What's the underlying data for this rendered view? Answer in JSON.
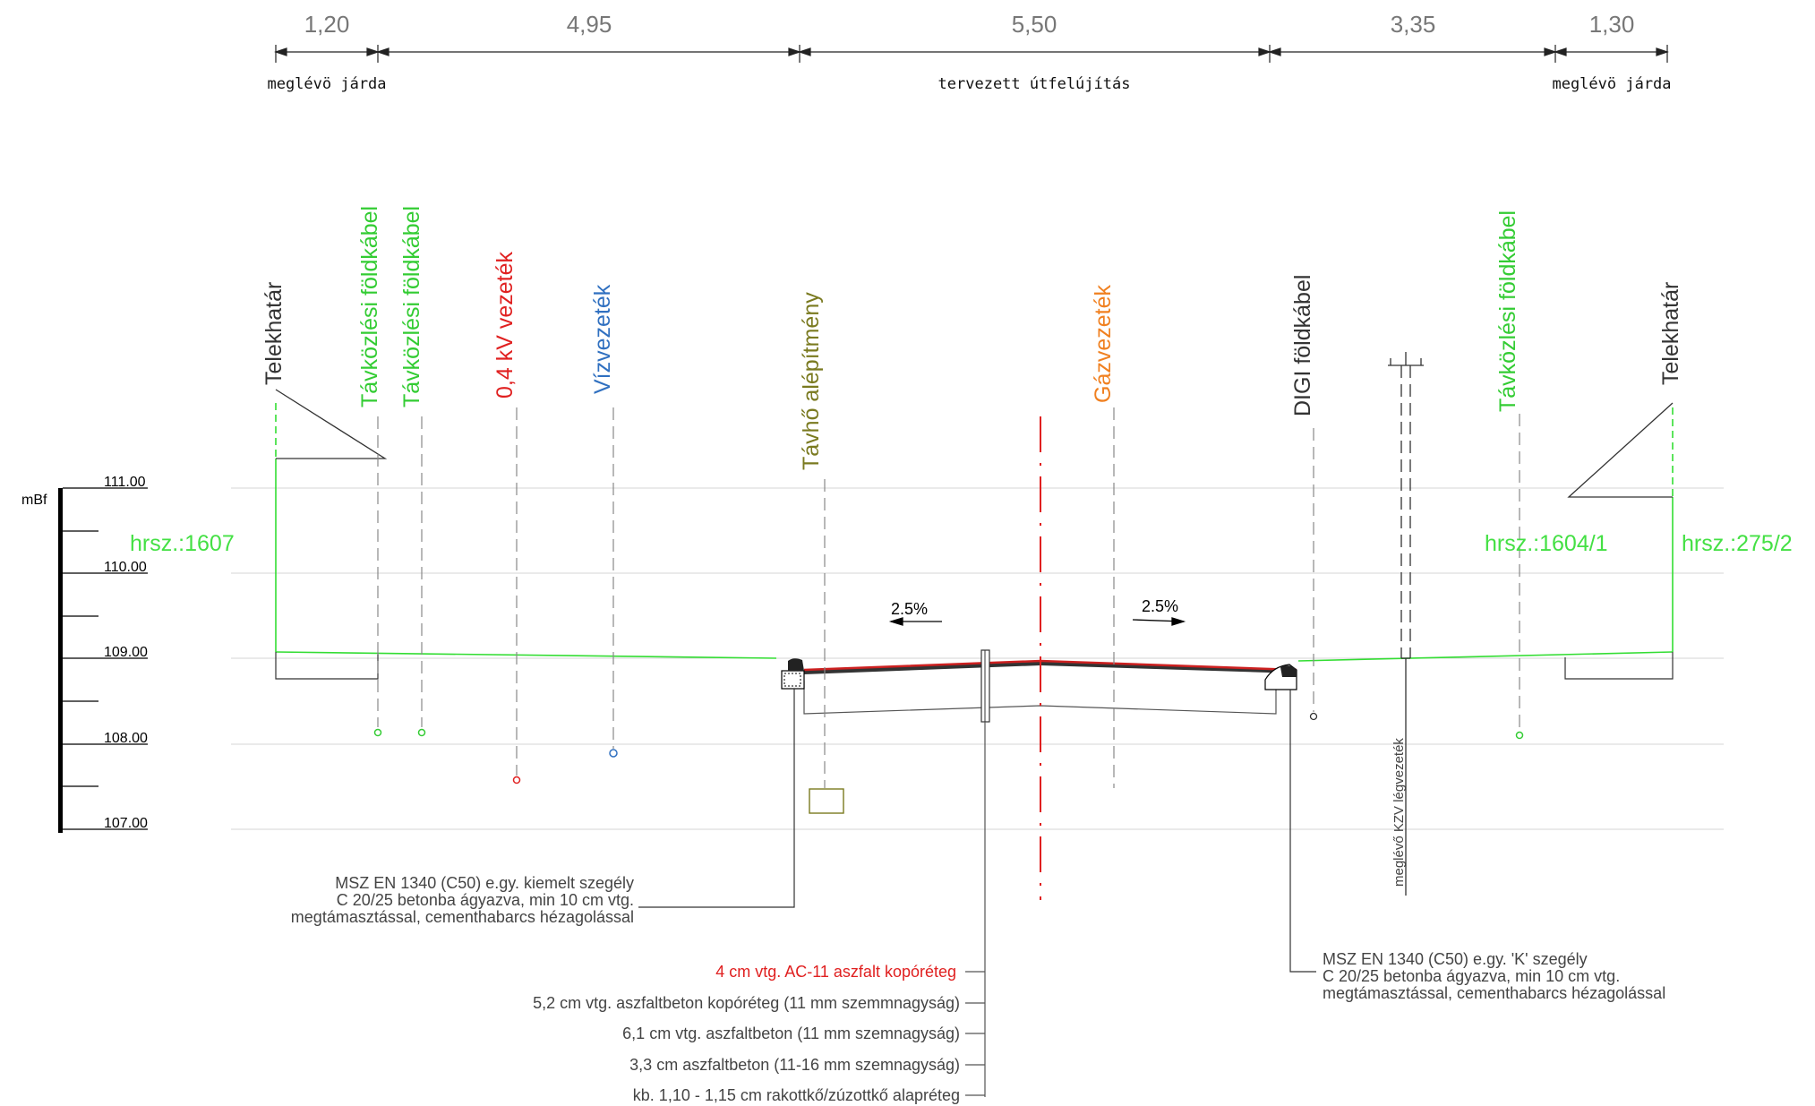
{
  "dimensions": {
    "values": [
      "1,20",
      "4,95",
      "5,50",
      "3,35",
      "1,30"
    ],
    "labels": {
      "left": "meglévö járda",
      "center": "tervezett útfelújítás",
      "right": "meglévö járda"
    }
  },
  "utilities": [
    {
      "label": "Telekhatár",
      "color": "#333333"
    },
    {
      "label": "Távközlési földkábel",
      "color": "#33cc33"
    },
    {
      "label": "Távközlési földkábel",
      "color": "#33cc33"
    },
    {
      "label": "0,4 kV vezeték",
      "color": "#e02020"
    },
    {
      "label": "Vízvezeték",
      "color": "#3070c0"
    },
    {
      "label": "Távhő alépítmény",
      "color": "#7a7a20"
    },
    {
      "label": "Gázvezeték",
      "color": "#f08020"
    },
    {
      "label": "DIGI földkábel",
      "color": "#333333"
    },
    {
      "label": "Távközlési földkábel",
      "color": "#33cc33"
    },
    {
      "label": "Telekhatár",
      "color": "#333333"
    }
  ],
  "scale": {
    "unit": "mBf",
    "ticks": [
      "111.00",
      "110.00",
      "109.00",
      "108.00",
      "107.00"
    ]
  },
  "parcels": {
    "left": "hrsz.:1607",
    "right_inner": "hrsz.:1604/1",
    "right_outer": "hrsz.:275/2"
  },
  "slopes": {
    "left": "2.5%",
    "right": "2.5%"
  },
  "notes": {
    "left_kerb": [
      "MSZ EN 1340 (C50) e.gy. kiemelt szegély",
      "C 20/25 betonba ágyazva, min 10 cm vtg.",
      "megtámasztással, cementhabarcs hézagolással"
    ],
    "right_kerb": [
      "MSZ EN 1340 (C50) e.gy. 'K' szegély",
      "C 20/25 betonba ágyazva, min 10 cm vtg.",
      "megtámasztással, cementhabarcs hézagolással"
    ],
    "overhead": "meglévő KZV légvezeték",
    "layers": [
      "4 cm vtg. AC-11 aszfalt kopóréteg",
      "5,2 cm vtg. aszfaltbeton kopóréteg (11 mm szemmnagyság)",
      "6,1 cm vtg.  aszfaltbeton (11 mm szemnagyság)",
      "3,3 cm aszfaltbeton (11-16 mm szemnagyság)",
      "kb. 1,10 - 1,15 cm rakottkő/zúzottkő alapréteg"
    ]
  },
  "colors": {
    "ground": "#33dd33",
    "asphalt_top": "#cc2020",
    "axis": "#e02020",
    "grid": "#d0d0d0"
  }
}
